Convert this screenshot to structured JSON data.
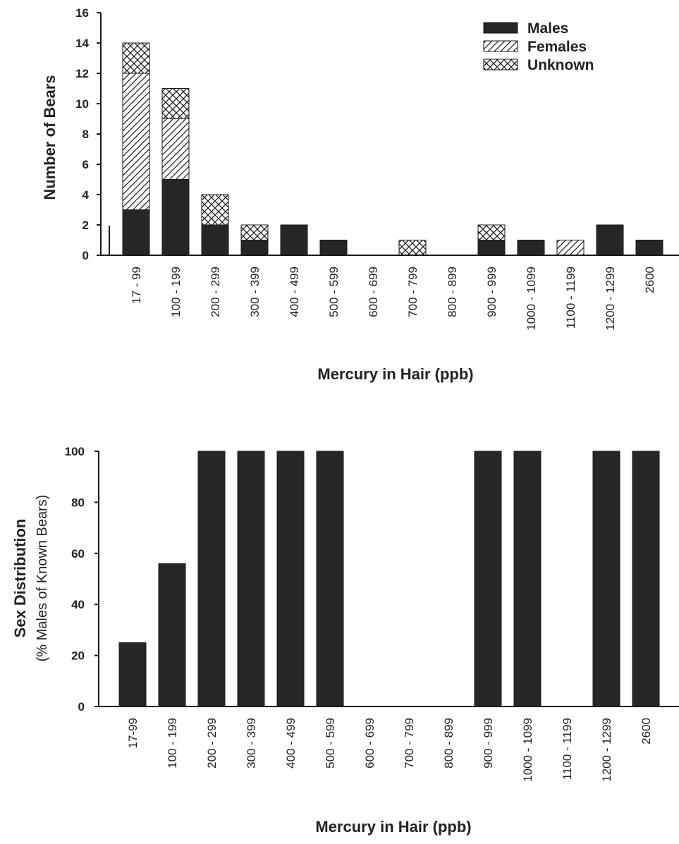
{
  "chart_data": [
    {
      "type": "bar",
      "stacked": true,
      "categories": [
        "17 - 99",
        "100 - 199",
        "200 - 299",
        "300 - 399",
        "400 - 499",
        "500 - 599",
        "600 - 699",
        "700 - 799",
        "800 - 899",
        "900 - 999",
        "1000 - 1099",
        "1100 - 1199",
        "1200 - 1299",
        "2600"
      ],
      "series": [
        {
          "name": "Males",
          "pattern": "solid",
          "values": [
            3,
            5,
            2,
            1,
            2,
            1,
            0,
            0,
            0,
            1,
            1,
            0,
            2,
            1
          ]
        },
        {
          "name": "Females",
          "pattern": "diagonal-hatch",
          "values": [
            9,
            4,
            0,
            0,
            0,
            0,
            0,
            0,
            0,
            0,
            0,
            1,
            0,
            0
          ]
        },
        {
          "name": "Unknown",
          "pattern": "crosshatch",
          "values": [
            2,
            2,
            2,
            1,
            0,
            0,
            0,
            1,
            0,
            1,
            0,
            0,
            0,
            0
          ]
        }
      ],
      "ylabel": "Number of Bears",
      "xlabel": "Mercury in Hair (ppb)",
      "ylim": [
        0,
        16
      ],
      "yticks": [
        "0",
        "2",
        "4",
        "6",
        "8",
        "10",
        "12",
        "14",
        "16"
      ],
      "legend_position": "top-right",
      "grid": false
    },
    {
      "type": "bar",
      "categories": [
        "17-99",
        "100 - 199",
        "200 - 299",
        "300 - 399",
        "400 - 499",
        "500 - 599",
        "600 - 699",
        "700 - 799",
        "800 - 899",
        "900 - 999",
        "1000 - 1099",
        "1100 - 1199",
        "1200 - 1299",
        "2600"
      ],
      "values": [
        25,
        56,
        100,
        100,
        100,
        100,
        0,
        0,
        0,
        100,
        100,
        0,
        100,
        100
      ],
      "ylabel": "Sex Distribution",
      "ylabel_sub": "(% Males of Known Bears)",
      "xlabel": "Mercury in Hair (ppb)",
      "ylim": [
        0,
        100
      ],
      "yticks": [
        "0",
        "20",
        "40",
        "60",
        "80",
        "100"
      ],
      "grid": false
    }
  ],
  "colors": {
    "bar_fill": "#262626",
    "axis": "#1a1a1a",
    "hatch_bg": "#ffffff"
  }
}
